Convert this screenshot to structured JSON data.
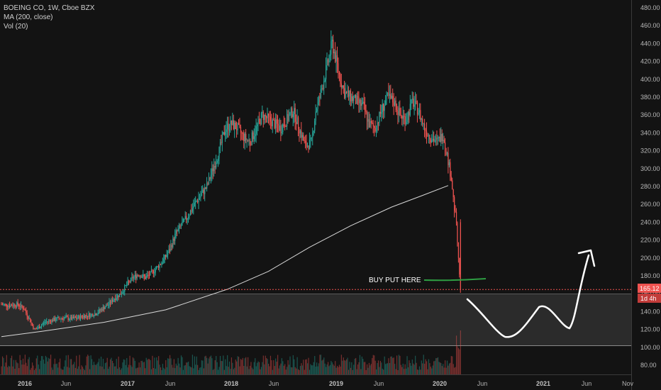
{
  "legend": {
    "symbol": "BOEING CO, 1W, Cboe BZX",
    "ma": "MA (200, close)",
    "vol": "Vol (20)"
  },
  "colors": {
    "background": "#131313",
    "up": "#26a69a",
    "down": "#ef5350",
    "ma_line": "#d8d8d8",
    "price_line": "#ef5350",
    "annotation": "#ffffff",
    "marker": "#2e9e43"
  },
  "price_badge": {
    "value": "165.12",
    "countdown": "1d 4h"
  },
  "annotation": {
    "text": "BUY PUT HERE"
  },
  "chart_data": {
    "type": "candlestick",
    "title": "BOEING CO, 1W, Cboe BZX",
    "y_ticks": [
      80,
      100,
      120,
      140,
      160,
      180,
      200,
      220,
      240,
      260,
      280,
      300,
      320,
      340,
      360,
      380,
      400,
      420,
      440,
      460,
      480
    ],
    "ylim": [
      72,
      490
    ],
    "x_ticks": [
      "2016",
      "Jun",
      "2017",
      "Jun",
      "2018",
      "Jun",
      "2019",
      "Jun",
      "2020",
      "Jun",
      "2021",
      "Jun",
      "Nov"
    ],
    "x_tick_bold": [
      "2016",
      "2017",
      "2018",
      "2019",
      "2020",
      "2021"
    ],
    "last_price": 165.12,
    "series": [
      {
        "name": "Price",
        "approx_close_path": [
          [
            0,
            148
          ],
          [
            8,
            147
          ],
          [
            16,
            148
          ],
          [
            22,
            143
          ],
          [
            27,
            132
          ],
          [
            32,
            120
          ],
          [
            36,
            122
          ],
          [
            42,
            128
          ],
          [
            48,
            130
          ],
          [
            55,
            132
          ],
          [
            62,
            133
          ],
          [
            68,
            132
          ],
          [
            74,
            133
          ],
          [
            80,
            135
          ],
          [
            86,
            136
          ],
          [
            92,
            138
          ],
          [
            98,
            143
          ],
          [
            104,
            148
          ],
          [
            110,
            155
          ],
          [
            116,
            160
          ],
          [
            122,
            170
          ],
          [
            128,
            178
          ],
          [
            134,
            182
          ],
          [
            140,
            178
          ],
          [
            146,
            183
          ],
          [
            152,
            190
          ],
          [
            158,
            198
          ],
          [
            164,
            210
          ],
          [
            170,
            228
          ],
          [
            176,
            238
          ],
          [
            182,
            248
          ],
          [
            188,
            260
          ],
          [
            194,
            270
          ],
          [
            200,
            280
          ],
          [
            206,
            300
          ],
          [
            212,
            320
          ],
          [
            218,
            345
          ],
          [
            224,
            350
          ],
          [
            230,
            345
          ],
          [
            236,
            335
          ],
          [
            242,
            330
          ],
          [
            248,
            345
          ],
          [
            254,
            360
          ],
          [
            260,
            355
          ],
          [
            266,
            350
          ],
          [
            272,
            345
          ],
          [
            278,
            355
          ],
          [
            284,
            365
          ],
          [
            290,
            345
          ],
          [
            296,
            325
          ],
          [
            302,
            330
          ],
          [
            306,
            365
          ],
          [
            310,
            380
          ],
          [
            314,
            400
          ],
          [
            318,
            420
          ],
          [
            322,
            440
          ],
          [
            326,
            420
          ],
          [
            330,
            400
          ],
          [
            334,
            385
          ],
          [
            340,
            380
          ],
          [
            346,
            375
          ],
          [
            352,
            370
          ],
          [
            358,
            350
          ],
          [
            364,
            345
          ],
          [
            370,
            365
          ],
          [
            376,
            380
          ],
          [
            382,
            375
          ],
          [
            388,
            360
          ],
          [
            394,
            355
          ],
          [
            400,
            375
          ],
          [
            406,
            365
          ],
          [
            412,
            345
          ],
          [
            418,
            335
          ],
          [
            424,
            330
          ],
          [
            430,
            338
          ],
          [
            434,
            315
          ],
          [
            438,
            290
          ],
          [
            441,
            255
          ],
          [
            443,
            240
          ],
          [
            447,
            165
          ]
        ]
      },
      {
        "name": "MA (200, close)",
        "values": [
          [
            0,
            112
          ],
          [
            40,
            118
          ],
          [
            100,
            128
          ],
          [
            160,
            142
          ],
          [
            220,
            165
          ],
          [
            260,
            185
          ],
          [
            300,
            212
          ],
          [
            340,
            236
          ],
          [
            380,
            257
          ],
          [
            410,
            270
          ],
          [
            435,
            281
          ]
        ]
      },
      {
        "name": "Vol (20)",
        "relative_levels": "low bars throughout, spike at the last week (2020)"
      }
    ],
    "projection": {
      "type": "hand-drawn arrow",
      "path_prices": [
        [
          0,
          155
        ],
        [
          15,
          118
        ],
        [
          27,
          135
        ],
        [
          40,
          122
        ],
        [
          48,
          215
        ]
      ]
    },
    "grid": false,
    "legend_position": "top-left"
  }
}
